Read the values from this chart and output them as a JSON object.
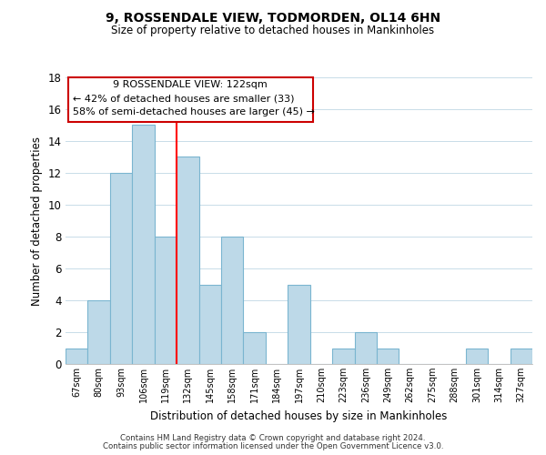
{
  "title": "9, ROSSENDALE VIEW, TODMORDEN, OL14 6HN",
  "subtitle": "Size of property relative to detached houses in Mankinholes",
  "xlabel": "Distribution of detached houses by size in Mankinholes",
  "ylabel": "Number of detached properties",
  "bin_labels": [
    "67sqm",
    "80sqm",
    "93sqm",
    "106sqm",
    "119sqm",
    "132sqm",
    "145sqm",
    "158sqm",
    "171sqm",
    "184sqm",
    "197sqm",
    "210sqm",
    "223sqm",
    "236sqm",
    "249sqm",
    "262sqm",
    "275sqm",
    "288sqm",
    "301sqm",
    "314sqm",
    "327sqm"
  ],
  "bar_heights": [
    1,
    4,
    12,
    15,
    8,
    13,
    5,
    8,
    2,
    0,
    5,
    0,
    1,
    2,
    1,
    0,
    0,
    0,
    1,
    0,
    1
  ],
  "bar_color": "#bdd9e8",
  "bar_edge_color": "#7ab5d0",
  "vline_x": 4.5,
  "vline_color": "red",
  "ylim": [
    0,
    18
  ],
  "yticks": [
    0,
    2,
    4,
    6,
    8,
    10,
    12,
    14,
    16,
    18
  ],
  "annotation_title": "9 ROSSENDALE VIEW: 122sqm",
  "annotation_line1": "← 42% of detached houses are smaller (33)",
  "annotation_line2": "58% of semi-detached houses are larger (45) →",
  "annotation_box_color": "#ffffff",
  "annotation_box_edge": "#cc0000",
  "footnote1": "Contains HM Land Registry data © Crown copyright and database right 2024.",
  "footnote2": "Contains public sector information licensed under the Open Government Licence v3.0.",
  "background_color": "#ffffff",
  "grid_color": "#c8dce8"
}
